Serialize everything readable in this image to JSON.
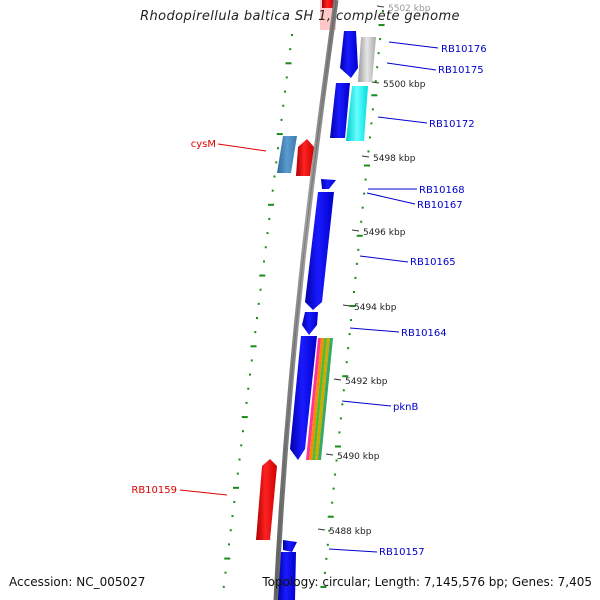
{
  "title": "Rhodopirellula baltica SH 1, complete genome",
  "accession": "Accession: NC_005027",
  "topology": "Topology: circular; Length: 7,145,576 bp; Genes: 7,405",
  "ticks": [
    {
      "label": "5502 kbp",
      "kbp": 5502
    },
    {
      "label": "5500 kbp",
      "kbp": 5500
    },
    {
      "label": "5498 kbp",
      "kbp": 5498
    },
    {
      "label": "5496 kbp",
      "kbp": 5496
    },
    {
      "label": "5494 kbp",
      "kbp": 5494
    },
    {
      "label": "5492 kbp",
      "kbp": 5492
    },
    {
      "label": "5490 kbp",
      "kbp": 5490
    },
    {
      "label": "5488 kbp",
      "kbp": 5488
    }
  ],
  "genes": [
    {
      "label": "RB10176",
      "strand": "right",
      "color": "#0000CC"
    },
    {
      "label": "RB10175",
      "strand": "right",
      "color": "#0000CC"
    },
    {
      "label": "RB10172",
      "strand": "right",
      "color": "#0000CC"
    },
    {
      "label": "cysM",
      "strand": "left",
      "color": "#DD0000"
    },
    {
      "label": "RB10168",
      "strand": "right",
      "color": "#0000CC"
    },
    {
      "label": "RB10167",
      "strand": "right",
      "color": "#0000CC"
    },
    {
      "label": "RB10165",
      "strand": "right",
      "color": "#0000CC"
    },
    {
      "label": "RB10164",
      "strand": "right",
      "color": "#0000CC"
    },
    {
      "label": "pknB",
      "strand": "right",
      "color": "#0000CC"
    },
    {
      "label": "RB10159",
      "strand": "left",
      "color": "#DD0000"
    },
    {
      "label": "RB10157",
      "strand": "right",
      "color": "#0000CC"
    }
  ],
  "colors": {
    "backbone": "#808080",
    "forward_gene": "#0000FF",
    "reverse_gene": "#FF0000",
    "steel_gene": "#4682B4",
    "cyan_gene": "#00FFFF",
    "grey_gene": "#C0C0C0",
    "gc_dots": "#1A8C1A",
    "label_right": "#0000CC",
    "label_left": "#DD0000"
  }
}
